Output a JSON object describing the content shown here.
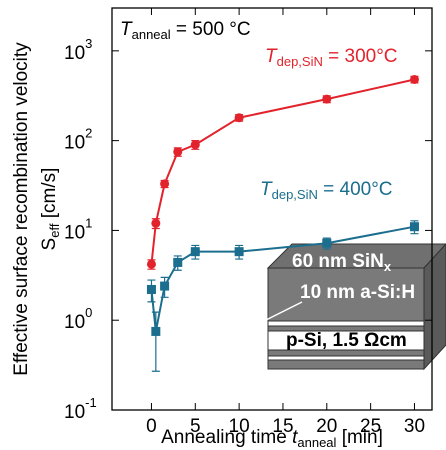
{
  "chart_data": {
    "type": "line",
    "yscale": "log",
    "y_label": [
      "Effective surface recombination velocity",
      "S",
      "eff",
      " [cm/s]"
    ],
    "x_label": [
      "Annealing time ",
      "t",
      "anneal",
      " [min]"
    ],
    "annotation": [
      "T",
      "anneal",
      " = 500 °C"
    ],
    "xlim": [
      -4.5,
      32
    ],
    "xticks": [
      0,
      5,
      10,
      15,
      20,
      25,
      30
    ],
    "ylim": [
      0.1,
      3000
    ],
    "yticks": [
      {
        "value": 0.1,
        "label": "10",
        "exponent": "-1"
      },
      {
        "value": 1,
        "label": "10",
        "exponent": "0"
      },
      {
        "value": 10,
        "label": "10",
        "exponent": "1"
      },
      {
        "value": 100,
        "label": "10",
        "exponent": "2"
      },
      {
        "value": 1000,
        "label": "10",
        "exponent": "3"
      }
    ],
    "series": [
      {
        "name": [
          "T",
          "dep,SiN",
          " = 300°C"
        ],
        "color": "#e3232c",
        "marker": "circle",
        "x": [
          0,
          0.5,
          1.5,
          3,
          5,
          10,
          20,
          30
        ],
        "values": [
          4.2,
          12,
          33,
          75,
          90,
          180,
          290,
          480
        ],
        "errors": [
          0.5,
          1.5,
          3,
          8,
          10,
          15,
          25,
          40
        ]
      },
      {
        "name": [
          "T",
          "dep,SiN",
          " = 400°C"
        ],
        "color": "#1b6e8e",
        "marker": "square",
        "x": [
          0,
          0.5,
          1.5,
          3,
          5,
          10,
          20,
          30
        ],
        "values": [
          2.2,
          0.75,
          2.4,
          4.4,
          5.8,
          5.8,
          7.2,
          11
        ],
        "errors": [
          0.6,
          0.48,
          0.6,
          0.8,
          1,
          1,
          1,
          1.8
        ]
      }
    ],
    "inset_labels": [
      "60 nm SiN",
      "x",
      "10 nm a-Si:H",
      "p-Si, 1.5 Ωcm"
    ]
  }
}
